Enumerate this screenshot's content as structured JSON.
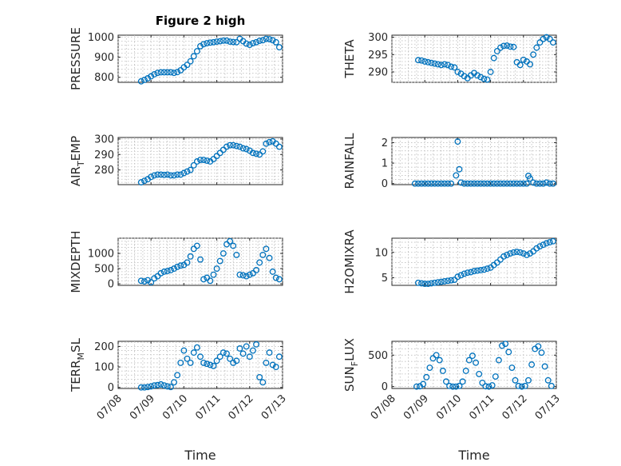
{
  "title": "Figure 2 high",
  "x_tick_labels": [
    "07/08",
    "07/09",
    "07/10",
    "07/11",
    "07/12",
    "07/13"
  ],
  "x_axis_label": "Time",
  "colors": {
    "marker": "#0072bd",
    "axes": "#262626",
    "grid": "#bdbdbd"
  },
  "chart_data": [
    {
      "type": "scatter",
      "ylabel": "PRESSURE",
      "ylabel_sub": "",
      "xlim": [
        0,
        5
      ],
      "ylim": [
        775,
        1010
      ],
      "yticks": [
        800,
        900,
        1000
      ],
      "grid": true,
      "x": [
        0.7,
        0.8,
        0.9,
        1.0,
        1.1,
        1.2,
        1.3,
        1.4,
        1.5,
        1.6,
        1.7,
        1.8,
        1.9,
        2.0,
        2.1,
        2.2,
        2.3,
        2.4,
        2.5,
        2.6,
        2.7,
        2.8,
        2.9,
        3.0,
        3.1,
        3.2,
        3.3,
        3.4,
        3.5,
        3.6,
        3.7,
        3.8,
        3.9,
        4.0,
        4.1,
        4.2,
        4.3,
        4.4,
        4.5,
        4.6,
        4.7,
        4.8,
        4.9
      ],
      "y": [
        780,
        787,
        795,
        805,
        815,
        822,
        825,
        825,
        825,
        825,
        822,
        826,
        835,
        850,
        862,
        880,
        905,
        930,
        955,
        965,
        970,
        973,
        975,
        978,
        980,
        983,
        983,
        978,
        976,
        975,
        992,
        980,
        968,
        962,
        970,
        975,
        982,
        985,
        992,
        990,
        985,
        975,
        950
      ]
    },
    {
      "type": "scatter",
      "ylabel": "THETA",
      "ylabel_sub": "",
      "xlim": [
        0,
        5
      ],
      "ylim": [
        287,
        300.6
      ],
      "yticks": [
        290,
        295,
        300
      ],
      "grid": true,
      "x": [
        0.8,
        0.9,
        1.0,
        1.1,
        1.2,
        1.3,
        1.4,
        1.5,
        1.6,
        1.7,
        1.8,
        1.9,
        2.0,
        2.1,
        2.2,
        2.3,
        2.4,
        2.5,
        2.6,
        2.7,
        2.8,
        2.9,
        3.0,
        3.1,
        3.2,
        3.3,
        3.4,
        3.5,
        3.6,
        3.7,
        3.8,
        3.9,
        4.0,
        4.1,
        4.2,
        4.3,
        4.4,
        4.5,
        4.6,
        4.7,
        4.8,
        4.9
      ],
      "y": [
        293.4,
        293.3,
        293.0,
        292.8,
        292.6,
        292.4,
        292.2,
        292.0,
        292.2,
        292.0,
        291.5,
        291.3,
        290.0,
        289.5,
        288.8,
        288.2,
        289.0,
        289.7,
        289.0,
        288.5,
        288.0,
        287.8,
        290.0,
        294.0,
        296.0,
        297.0,
        297.5,
        297.6,
        297.3,
        297.2,
        292.8,
        292.0,
        293.5,
        293.0,
        292.2,
        295.0,
        297.0,
        298.5,
        299.5,
        300.0,
        299.5,
        298.5
      ]
    },
    {
      "type": "scatter",
      "ylabel": "AIR",
      "ylabel_sub": "T",
      "ylabel_suffix": "EMP",
      "xlim": [
        0,
        5
      ],
      "ylim": [
        270.5,
        301
      ],
      "yticks": [
        280,
        290,
        300
      ],
      "grid": true,
      "x": [
        0.7,
        0.8,
        0.9,
        1.0,
        1.1,
        1.2,
        1.3,
        1.4,
        1.5,
        1.6,
        1.7,
        1.8,
        1.9,
        2.0,
        2.1,
        2.2,
        2.3,
        2.4,
        2.5,
        2.6,
        2.7,
        2.8,
        2.9,
        3.0,
        3.1,
        3.2,
        3.3,
        3.4,
        3.5,
        3.6,
        3.7,
        3.8,
        3.9,
        4.0,
        4.1,
        4.2,
        4.3,
        4.4,
        4.5,
        4.6,
        4.7,
        4.8,
        4.9
      ],
      "y": [
        272,
        273,
        274,
        275.5,
        276.5,
        277,
        277,
        276.8,
        277,
        276.5,
        276.5,
        277,
        277,
        278,
        279,
        280,
        283,
        285.5,
        286.5,
        286.5,
        286,
        285.5,
        287,
        289,
        291,
        293,
        295,
        296,
        296,
        295.5,
        295,
        294,
        293.5,
        292.5,
        291,
        290.5,
        290,
        292,
        297,
        298,
        298.5,
        297,
        295
      ]
    },
    {
      "type": "scatter",
      "ylabel": "RAINFALL",
      "ylabel_sub": "",
      "xlim": [
        0,
        5
      ],
      "ylim": [
        -0.05,
        2.25
      ],
      "yticks": [
        0,
        1,
        2
      ],
      "grid": true,
      "x": [
        0.7,
        0.8,
        0.9,
        1.0,
        1.1,
        1.2,
        1.3,
        1.4,
        1.5,
        1.6,
        1.7,
        1.8,
        1.95,
        2.0,
        2.05,
        2.1,
        2.2,
        2.3,
        2.4,
        2.5,
        2.6,
        2.7,
        2.8,
        2.9,
        3.0,
        3.1,
        3.2,
        3.3,
        3.4,
        3.5,
        3.6,
        3.7,
        3.8,
        3.9,
        4.0,
        4.1,
        4.15,
        4.2,
        4.3,
        4.4,
        4.5,
        4.6,
        4.7,
        4.8,
        4.9
      ],
      "y": [
        0,
        0,
        0,
        0,
        0,
        0,
        0,
        0,
        0,
        0,
        0,
        0,
        0.4,
        2.05,
        0.7,
        0.05,
        0,
        0,
        0,
        0,
        0,
        0,
        0,
        0,
        0,
        0,
        0,
        0,
        0,
        0,
        0,
        0,
        0,
        0,
        0,
        0,
        0.38,
        0.25,
        0.05,
        0,
        0,
        0,
        0.05,
        0,
        0
      ]
    },
    {
      "type": "scatter",
      "ylabel": "MIXDEPTH",
      "ylabel_sub": "",
      "xlim": [
        0,
        5
      ],
      "ylim": [
        -50,
        1500
      ],
      "yticks": [
        0,
        500,
        1000
      ],
      "grid": true,
      "x": [
        0.7,
        0.8,
        0.9,
        1.0,
        1.1,
        1.2,
        1.3,
        1.4,
        1.5,
        1.6,
        1.7,
        1.8,
        1.9,
        2.0,
        2.1,
        2.2,
        2.3,
        2.4,
        2.5,
        2.6,
        2.7,
        2.8,
        2.9,
        3.0,
        3.1,
        3.2,
        3.3,
        3.4,
        3.5,
        3.6,
        3.7,
        3.8,
        3.9,
        4.0,
        4.1,
        4.2,
        4.3,
        4.4,
        4.5,
        4.6,
        4.7,
        4.8,
        4.9
      ],
      "y": [
        100,
        80,
        120,
        50,
        180,
        250,
        350,
        400,
        420,
        450,
        500,
        560,
        600,
        620,
        700,
        900,
        1150,
        1250,
        800,
        150,
        200,
        100,
        300,
        500,
        750,
        1000,
        1300,
        1400,
        1250,
        950,
        300,
        280,
        250,
        300,
        350,
        450,
        700,
        950,
        1150,
        850,
        400,
        200,
        150
      ]
    },
    {
      "type": "scatter",
      "ylabel": "H2OMIXRA",
      "ylabel_sub": "",
      "xlim": [
        0,
        5
      ],
      "ylim": [
        3.5,
        12.8
      ],
      "yticks": [
        5,
        10
      ],
      "grid": true,
      "x": [
        0.8,
        0.9,
        1.0,
        1.1,
        1.2,
        1.3,
        1.4,
        1.5,
        1.6,
        1.7,
        1.8,
        1.9,
        2.0,
        2.1,
        2.2,
        2.3,
        2.4,
        2.5,
        2.6,
        2.7,
        2.8,
        2.9,
        3.0,
        3.1,
        3.2,
        3.3,
        3.4,
        3.5,
        3.6,
        3.7,
        3.8,
        3.9,
        4.0,
        4.1,
        4.2,
        4.3,
        4.4,
        4.5,
        4.6,
        4.7,
        4.8,
        4.9
      ],
      "y": [
        4.0,
        3.9,
        3.8,
        3.8,
        3.9,
        4.0,
        4.1,
        4.2,
        4.3,
        4.4,
        4.5,
        4.6,
        5.2,
        5.5,
        5.8,
        6.0,
        6.1,
        6.3,
        6.4,
        6.5,
        6.6,
        6.8,
        7.0,
        7.5,
        8.0,
        8.6,
        9.2,
        9.5,
        9.8,
        10.0,
        10.1,
        10.0,
        9.8,
        9.5,
        9.8,
        10.2,
        10.8,
        11.2,
        11.5,
        11.8,
        12.0,
        12.2
      ]
    },
    {
      "type": "scatter",
      "ylabel": "TERR",
      "ylabel_sub": "M",
      "ylabel_suffix": "SL",
      "xlim": [
        0,
        5
      ],
      "ylim": [
        -5,
        225
      ],
      "yticks": [
        0,
        100,
        200
      ],
      "grid": true,
      "x": [
        0.7,
        0.8,
        0.9,
        1.0,
        1.1,
        1.2,
        1.3,
        1.4,
        1.5,
        1.6,
        1.7,
        1.8,
        1.9,
        2.0,
        2.1,
        2.2,
        2.3,
        2.4,
        2.5,
        2.6,
        2.7,
        2.8,
        2.9,
        3.0,
        3.1,
        3.2,
        3.3,
        3.4,
        3.5,
        3.6,
        3.7,
        3.8,
        3.9,
        4.0,
        4.1,
        4.2,
        4.3,
        4.4,
        4.5,
        4.6,
        4.7,
        4.8,
        4.9
      ],
      "y": [
        0,
        0,
        2,
        5,
        10,
        12,
        15,
        10,
        5,
        2,
        25,
        60,
        120,
        180,
        140,
        120,
        170,
        195,
        150,
        120,
        115,
        110,
        105,
        130,
        150,
        170,
        165,
        140,
        120,
        130,
        190,
        165,
        200,
        150,
        180,
        210,
        50,
        25,
        120,
        170,
        110,
        100,
        150
      ]
    },
    {
      "type": "scatter",
      "ylabel": "SUN",
      "ylabel_sub": "F",
      "ylabel_suffix": "LUX",
      "xlim": [
        0,
        5
      ],
      "ylim": [
        -30,
        720
      ],
      "yticks": [
        0,
        500
      ],
      "grid": true,
      "x": [
        0.75,
        0.85,
        0.95,
        1.05,
        1.15,
        1.25,
        1.35,
        1.45,
        1.55,
        1.65,
        1.75,
        1.85,
        1.95,
        2.05,
        2.15,
        2.25,
        2.35,
        2.45,
        2.55,
        2.65,
        2.75,
        2.85,
        2.95,
        3.05,
        3.15,
        3.25,
        3.35,
        3.45,
        3.55,
        3.65,
        3.75,
        3.85,
        3.95,
        4.05,
        4.15,
        4.25,
        4.35,
        4.45,
        4.55,
        4.65,
        4.75,
        4.85
      ],
      "y": [
        0,
        5,
        40,
        150,
        300,
        450,
        500,
        420,
        250,
        80,
        10,
        0,
        0,
        10,
        80,
        250,
        420,
        490,
        380,
        200,
        60,
        5,
        0,
        20,
        160,
        420,
        650,
        680,
        550,
        300,
        100,
        10,
        0,
        10,
        100,
        350,
        600,
        640,
        540,
        320,
        100,
        10
      ]
    }
  ]
}
